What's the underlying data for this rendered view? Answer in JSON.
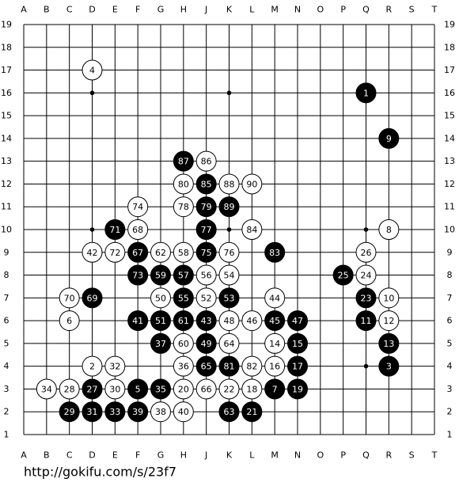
{
  "board": {
    "columns": [
      "A",
      "B",
      "C",
      "D",
      "E",
      "F",
      "G",
      "H",
      "J",
      "K",
      "L",
      "M",
      "N",
      "O",
      "P",
      "Q",
      "R",
      "S",
      "T"
    ],
    "rows": [
      19,
      18,
      17,
      16,
      15,
      14,
      13,
      12,
      11,
      10,
      9,
      8,
      7,
      6,
      5,
      4,
      3,
      2,
      1
    ],
    "stones": [
      {
        "label": 1,
        "color": "black",
        "col": "Q",
        "row": 16
      },
      {
        "label": 2,
        "color": "white",
        "col": "D",
        "row": 4
      },
      {
        "label": 3,
        "color": "black",
        "col": "R",
        "row": 4
      },
      {
        "label": 4,
        "color": "white",
        "col": "D",
        "row": 17
      },
      {
        "label": 5,
        "color": "black",
        "col": "F",
        "row": 3
      },
      {
        "label": 6,
        "color": "white",
        "col": "C",
        "row": 6
      },
      {
        "label": 7,
        "color": "black",
        "col": "M",
        "row": 3
      },
      {
        "label": 8,
        "color": "white",
        "col": "R",
        "row": 10
      },
      {
        "label": 9,
        "color": "black",
        "col": "R",
        "row": 14
      },
      {
        "label": 10,
        "color": "white",
        "col": "R",
        "row": 7
      },
      {
        "label": 11,
        "color": "black",
        "col": "Q",
        "row": 6
      },
      {
        "label": 12,
        "color": "white",
        "col": "R",
        "row": 6
      },
      {
        "label": 13,
        "color": "black",
        "col": "R",
        "row": 5
      },
      {
        "label": 14,
        "color": "white",
        "col": "M",
        "row": 5
      },
      {
        "label": 15,
        "color": "black",
        "col": "N",
        "row": 5
      },
      {
        "label": 16,
        "color": "white",
        "col": "M",
        "row": 4
      },
      {
        "label": 17,
        "color": "black",
        "col": "N",
        "row": 4
      },
      {
        "label": 18,
        "color": "white",
        "col": "L",
        "row": 3
      },
      {
        "label": 19,
        "color": "black",
        "col": "N",
        "row": 3
      },
      {
        "label": 20,
        "color": "white",
        "col": "H",
        "row": 3
      },
      {
        "label": 21,
        "color": "black",
        "col": "L",
        "row": 2
      },
      {
        "label": 22,
        "color": "white",
        "col": "K",
        "row": 3
      },
      {
        "label": 23,
        "color": "black",
        "col": "Q",
        "row": 7
      },
      {
        "label": 24,
        "color": "white",
        "col": "Q",
        "row": 8
      },
      {
        "label": 25,
        "color": "black",
        "col": "P",
        "row": 8
      },
      {
        "label": 26,
        "color": "white",
        "col": "Q",
        "row": 9
      },
      {
        "label": 27,
        "color": "black",
        "col": "D",
        "row": 3
      },
      {
        "label": 28,
        "color": "white",
        "col": "C",
        "row": 3
      },
      {
        "label": 29,
        "color": "black",
        "col": "C",
        "row": 2
      },
      {
        "label": 30,
        "color": "white",
        "col": "E",
        "row": 3
      },
      {
        "label": 31,
        "color": "black",
        "col": "D",
        "row": 2
      },
      {
        "label": 32,
        "color": "white",
        "col": "E",
        "row": 4
      },
      {
        "label": 33,
        "color": "black",
        "col": "E",
        "row": 2
      },
      {
        "label": 34,
        "color": "white",
        "col": "B",
        "row": 3
      },
      {
        "label": 35,
        "color": "black",
        "col": "G",
        "row": 3
      },
      {
        "label": 36,
        "color": "white",
        "col": "H",
        "row": 4
      },
      {
        "label": 37,
        "color": "black",
        "col": "G",
        "row": 5
      },
      {
        "label": 38,
        "color": "white",
        "col": "G",
        "row": 2
      },
      {
        "label": 39,
        "color": "black",
        "col": "F",
        "row": 2
      },
      {
        "label": 40,
        "color": "white",
        "col": "H",
        "row": 2
      },
      {
        "label": 41,
        "color": "black",
        "col": "F",
        "row": 6
      },
      {
        "label": 42,
        "color": "white",
        "col": "D",
        "row": 9
      },
      {
        "label": 43,
        "color": "black",
        "col": "J",
        "row": 6
      },
      {
        "label": 44,
        "color": "white",
        "col": "M",
        "row": 7
      },
      {
        "label": 45,
        "color": "black",
        "col": "M",
        "row": 6
      },
      {
        "label": 46,
        "color": "white",
        "col": "L",
        "row": 6
      },
      {
        "label": 47,
        "color": "black",
        "col": "N",
        "row": 6
      },
      {
        "label": 48,
        "color": "white",
        "col": "K",
        "row": 6
      },
      {
        "label": 49,
        "color": "black",
        "col": "J",
        "row": 5
      },
      {
        "label": 50,
        "color": "white",
        "col": "G",
        "row": 7
      },
      {
        "label": 51,
        "color": "black",
        "col": "G",
        "row": 6
      },
      {
        "label": 52,
        "color": "white",
        "col": "J",
        "row": 7
      },
      {
        "label": 53,
        "color": "black",
        "col": "K",
        "row": 7
      },
      {
        "label": 54,
        "color": "white",
        "col": "K",
        "row": 8
      },
      {
        "label": 55,
        "color": "black",
        "col": "H",
        "row": 7
      },
      {
        "label": 56,
        "color": "white",
        "col": "J",
        "row": 8
      },
      {
        "label": 57,
        "color": "black",
        "col": "H",
        "row": 8
      },
      {
        "label": 58,
        "color": "white",
        "col": "H",
        "row": 9
      },
      {
        "label": 59,
        "color": "black",
        "col": "G",
        "row": 8
      },
      {
        "label": 60,
        "color": "white",
        "col": "H",
        "row": 5
      },
      {
        "label": 61,
        "color": "black",
        "col": "H",
        "row": 6
      },
      {
        "label": 62,
        "color": "white",
        "col": "G",
        "row": 9
      },
      {
        "label": 63,
        "color": "black",
        "col": "K",
        "row": 2
      },
      {
        "label": 64,
        "color": "white",
        "col": "K",
        "row": 5
      },
      {
        "label": 65,
        "color": "black",
        "col": "J",
        "row": 4
      },
      {
        "label": 66,
        "color": "white",
        "col": "J",
        "row": 3
      },
      {
        "label": 67,
        "color": "black",
        "col": "F",
        "row": 9
      },
      {
        "label": 68,
        "color": "white",
        "col": "F",
        "row": 10
      },
      {
        "label": 69,
        "color": "black",
        "col": "D",
        "row": 7
      },
      {
        "label": 70,
        "color": "white",
        "col": "C",
        "row": 7
      },
      {
        "label": 71,
        "color": "black",
        "col": "E",
        "row": 10
      },
      {
        "label": 72,
        "color": "white",
        "col": "E",
        "row": 9
      },
      {
        "label": 73,
        "color": "black",
        "col": "F",
        "row": 8
      },
      {
        "label": 74,
        "color": "white",
        "col": "F",
        "row": 11
      },
      {
        "label": 75,
        "color": "black",
        "col": "J",
        "row": 9
      },
      {
        "label": 76,
        "color": "white",
        "col": "K",
        "row": 9
      },
      {
        "label": 77,
        "color": "black",
        "col": "J",
        "row": 10
      },
      {
        "label": 78,
        "color": "white",
        "col": "H",
        "row": 11
      },
      {
        "label": 79,
        "color": "black",
        "col": "J",
        "row": 11
      },
      {
        "label": 80,
        "color": "white",
        "col": "H",
        "row": 12
      },
      {
        "label": 81,
        "color": "black",
        "col": "K",
        "row": 4
      },
      {
        "label": 82,
        "color": "white",
        "col": "L",
        "row": 4
      },
      {
        "label": 83,
        "color": "black",
        "col": "M",
        "row": 9
      },
      {
        "label": 84,
        "color": "white",
        "col": "L",
        "row": 10
      },
      {
        "label": 85,
        "color": "black",
        "col": "J",
        "row": 12
      },
      {
        "label": 86,
        "color": "white",
        "col": "J",
        "row": 13
      },
      {
        "label": 87,
        "color": "black",
        "col": "H",
        "row": 13
      },
      {
        "label": 88,
        "color": "white",
        "col": "K",
        "row": 12
      },
      {
        "label": 89,
        "color": "black",
        "col": "K",
        "row": 11
      },
      {
        "label": 90,
        "color": "white",
        "col": "L",
        "row": 12
      }
    ]
  },
  "footer": {
    "url": "http://gokifu.com/s/23f7"
  }
}
